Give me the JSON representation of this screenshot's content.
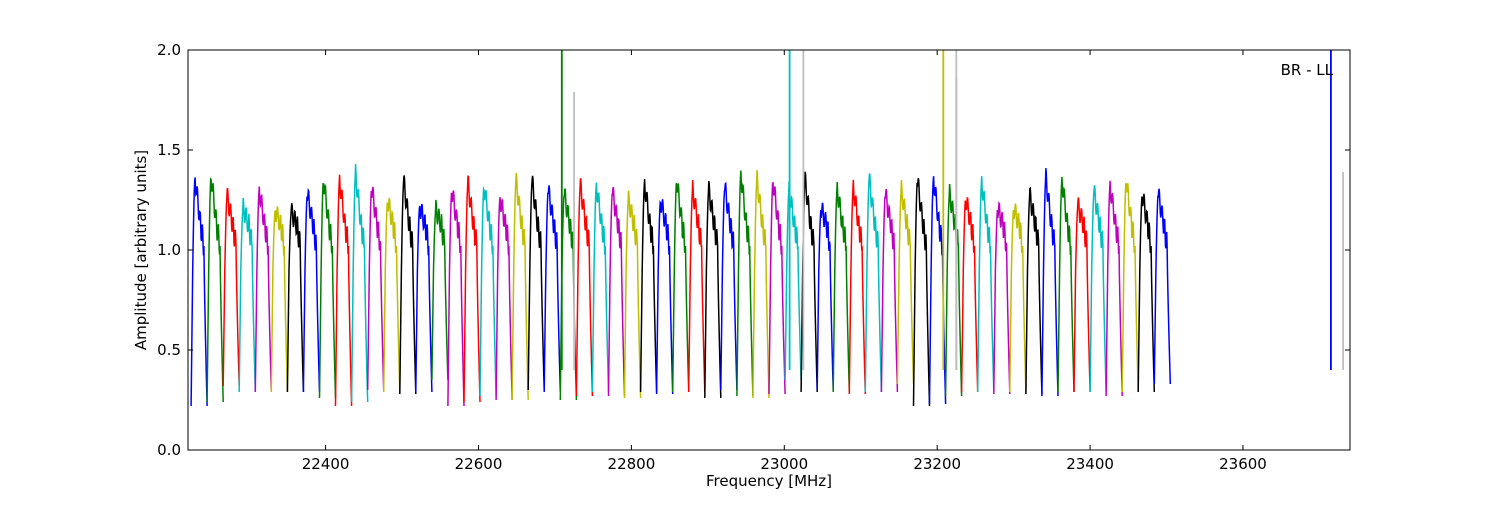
{
  "chart_data": {
    "type": "line",
    "title": "",
    "xlabel": "Frequency [MHz]",
    "ylabel": "Amplitude [arbitrary units]",
    "xlim": [
      22220,
      23740
    ],
    "ylim": [
      0.0,
      2.0
    ],
    "xticks": [
      22400,
      22600,
      22800,
      23000,
      23200,
      23400,
      23600
    ],
    "xtick_labels": [
      "22400",
      "22600",
      "22800",
      "23000",
      "23200",
      "23400",
      "23600"
    ],
    "yticks": [
      0.0,
      0.5,
      1.0,
      1.5,
      2.0
    ],
    "ytick_labels": [
      "0.0",
      "0.5",
      "1.0",
      "1.5",
      "2.0"
    ],
    "grid": false,
    "annotation": "BR - LL",
    "series_colors": [
      "#0000ff",
      "#008000",
      "#ff0000",
      "#00bfbf",
      "#bf00bf",
      "#bfbf00",
      "#000000"
    ],
    "segment_width_mhz": 21.2,
    "segments": [
      {
        "x0": 22224,
        "x1": 22245,
        "color": "#0000ff",
        "peak": 1.36,
        "low": 0.22
      },
      {
        "x0": 22245,
        "x1": 22266,
        "color": "#008000",
        "peak": 1.37,
        "low": 0.24
      },
      {
        "x0": 22266,
        "x1": 22287,
        "color": "#ff0000",
        "peak": 1.27,
        "low": 0.32
      },
      {
        "x0": 22287,
        "x1": 22308,
        "color": "#00bfbf",
        "peak": 1.21,
        "low": 0.29
      },
      {
        "x0": 22308,
        "x1": 22329,
        "color": "#bf00bf",
        "peak": 1.3,
        "low": 0.29
      },
      {
        "x0": 22329,
        "x1": 22350,
        "color": "#bfbf00",
        "peak": 1.2,
        "low": 0.29
      },
      {
        "x0": 22350,
        "x1": 22371,
        "color": "#000000",
        "peak": 1.19,
        "low": 0.29
      },
      {
        "x0": 22371,
        "x1": 22392,
        "color": "#0000ff",
        "peak": 1.28,
        "low": 0.29
      },
      {
        "x0": 22392,
        "x1": 22413,
        "color": "#008000",
        "peak": 1.35,
        "low": 0.26
      },
      {
        "x0": 22413,
        "x1": 22434,
        "color": "#ff0000",
        "peak": 1.35,
        "low": 0.22
      },
      {
        "x0": 22434,
        "x1": 22455,
        "color": "#00bfbf",
        "peak": 1.38,
        "low": 0.24
      },
      {
        "x0": 22455,
        "x1": 22476,
        "color": "#bf00bf",
        "peak": 1.31,
        "low": 0.3
      },
      {
        "x0": 22476,
        "x1": 22497,
        "color": "#bfbf00",
        "peak": 1.25,
        "low": 0.29
      },
      {
        "x0": 22497,
        "x1": 22518,
        "color": "#000000",
        "peak": 1.34,
        "low": 0.28
      },
      {
        "x0": 22518,
        "x1": 22539,
        "color": "#0000ff",
        "peak": 1.22,
        "low": 0.29
      },
      {
        "x0": 22539,
        "x1": 22560,
        "color": "#008000",
        "peak": 1.2,
        "low": 0.35
      },
      {
        "x0": 22560,
        "x1": 22581,
        "color": "#bf00bf",
        "peak": 1.3,
        "low": 0.22
      },
      {
        "x0": 22581,
        "x1": 22602,
        "color": "#ff0000",
        "peak": 1.33,
        "low": 0.24
      },
      {
        "x0": 22602,
        "x1": 22623,
        "color": "#00bfbf",
        "peak": 1.32,
        "low": 0.27
      },
      {
        "x0": 22623,
        "x1": 22644,
        "color": "#bf00bf",
        "peak": 1.26,
        "low": 0.25
      },
      {
        "x0": 22644,
        "x1": 22665,
        "color": "#bfbf00",
        "peak": 1.34,
        "low": 0.25
      },
      {
        "x0": 22665,
        "x1": 22686,
        "color": "#000000",
        "peak": 1.34,
        "low": 0.3
      },
      {
        "x0": 22686,
        "x1": 22707,
        "color": "#0000ff",
        "peak": 1.3,
        "low": 0.29
      },
      {
        "x0": 22707,
        "x1": 22728,
        "color": "#008000",
        "peak": 1.28,
        "low": 0.25
      },
      {
        "x0": 22728,
        "x1": 22749,
        "color": "#ff0000",
        "peak": 1.32,
        "low": 0.27
      },
      {
        "x0": 22749,
        "x1": 22770,
        "color": "#00bfbf",
        "peak": 1.32,
        "low": 0.29
      },
      {
        "x0": 22770,
        "x1": 22791,
        "color": "#bf00bf",
        "peak": 1.29,
        "low": 0.27
      },
      {
        "x0": 22791,
        "x1": 22812,
        "color": "#bfbf00",
        "peak": 1.25,
        "low": 0.26
      },
      {
        "x0": 22812,
        "x1": 22833,
        "color": "#000000",
        "peak": 1.33,
        "low": 0.29
      },
      {
        "x0": 22833,
        "x1": 22854,
        "color": "#0000ff",
        "peak": 1.25,
        "low": 0.28
      },
      {
        "x0": 22854,
        "x1": 22875,
        "color": "#008000",
        "peak": 1.35,
        "low": 0.29
      },
      {
        "x0": 22875,
        "x1": 22896,
        "color": "#ff0000",
        "peak": 1.3,
        "low": 0.29
      },
      {
        "x0": 22896,
        "x1": 22917,
        "color": "#000000",
        "peak": 1.3,
        "low": 0.26
      },
      {
        "x0": 22917,
        "x1": 22938,
        "color": "#0000ff",
        "peak": 1.31,
        "low": 0.3
      },
      {
        "x0": 22938,
        "x1": 22959,
        "color": "#008000",
        "peak": 1.38,
        "low": 0.27
      },
      {
        "x0": 22959,
        "x1": 22980,
        "color": "#bfbf00",
        "peak": 1.35,
        "low": 0.26
      },
      {
        "x0": 22980,
        "x1": 23001,
        "color": "#bf00bf",
        "peak": 1.35,
        "low": 0.28
      },
      {
        "x0": 23001,
        "x1": 23022,
        "color": "#00bfbf",
        "peak": 1.3,
        "low": 0.35
      },
      {
        "x0": 23022,
        "x1": 23043,
        "color": "#000000",
        "peak": 1.35,
        "low": 0.29
      },
      {
        "x0": 23043,
        "x1": 23064,
        "color": "#0000ff",
        "peak": 1.21,
        "low": 0.3
      },
      {
        "x0": 23064,
        "x1": 23085,
        "color": "#008000",
        "peak": 1.3,
        "low": 0.29
      },
      {
        "x0": 23085,
        "x1": 23106,
        "color": "#ff0000",
        "peak": 1.31,
        "low": 0.28
      },
      {
        "x0": 23106,
        "x1": 23127,
        "color": "#00bfbf",
        "peak": 1.35,
        "low": 0.29
      },
      {
        "x0": 23127,
        "x1": 23148,
        "color": "#bf00bf",
        "peak": 1.28,
        "low": 0.29
      },
      {
        "x0": 23148,
        "x1": 23169,
        "color": "#bfbf00",
        "peak": 1.3,
        "low": 0.33
      },
      {
        "x0": 23169,
        "x1": 23190,
        "color": "#000000",
        "peak": 1.35,
        "low": 0.22
      },
      {
        "x0": 23190,
        "x1": 23211,
        "color": "#0000ff",
        "peak": 1.36,
        "low": 0.23
      },
      {
        "x0": 23211,
        "x1": 23232,
        "color": "#008000",
        "peak": 1.28,
        "low": 0.27
      },
      {
        "x0": 23232,
        "x1": 23253,
        "color": "#ff0000",
        "peak": 1.26,
        "low": 0.29
      },
      {
        "x0": 23253,
        "x1": 23274,
        "color": "#00bfbf",
        "peak": 1.34,
        "low": 0.29
      },
      {
        "x0": 23274,
        "x1": 23295,
        "color": "#bf00bf",
        "peak": 1.21,
        "low": 0.28
      },
      {
        "x0": 23295,
        "x1": 23316,
        "color": "#bfbf00",
        "peak": 1.21,
        "low": 0.29
      },
      {
        "x0": 23316,
        "x1": 23337,
        "color": "#000000",
        "peak": 1.27,
        "low": 0.28
      },
      {
        "x0": 23337,
        "x1": 23358,
        "color": "#0000ff",
        "peak": 1.36,
        "low": 0.27
      },
      {
        "x0": 23358,
        "x1": 23379,
        "color": "#008000",
        "peak": 1.35,
        "low": 0.29
      },
      {
        "x0": 23379,
        "x1": 23400,
        "color": "#ff0000",
        "peak": 1.22,
        "low": 0.29
      },
      {
        "x0": 23400,
        "x1": 23421,
        "color": "#00bfbf",
        "peak": 1.29,
        "low": 0.29
      },
      {
        "x0": 23421,
        "x1": 23442,
        "color": "#bf00bf",
        "peak": 1.32,
        "low": 0.27
      },
      {
        "x0": 23442,
        "x1": 23463,
        "color": "#bfbf00",
        "peak": 1.35,
        "low": 0.29
      },
      {
        "x0": 23463,
        "x1": 23484,
        "color": "#000000",
        "peak": 1.28,
        "low": 0.29
      },
      {
        "x0": 23484,
        "x1": 23505,
        "color": "#0000ff",
        "peak": 1.28,
        "low": 0.33
      }
    ],
    "spikes": [
      {
        "x": 22709,
        "top": 2.0,
        "color": "#008000"
      },
      {
        "x": 22725,
        "top": 1.79,
        "color": "#bfbfbf"
      },
      {
        "x": 23007,
        "top": 2.0,
        "color": "#00bfbf"
      },
      {
        "x": 23025,
        "top": 2.0,
        "color": "#bfbfbf"
      },
      {
        "x": 23208,
        "top": 2.0,
        "color": "#bfbf00"
      },
      {
        "x": 23225,
        "top": 1.86,
        "color": "#bfbf00"
      },
      {
        "x": 23225,
        "top": 2.0,
        "color": "#bfbfbf"
      },
      {
        "x": 23715,
        "top": 2.0,
        "color": "#0000ff"
      },
      {
        "x": 23731,
        "top": 1.39,
        "color": "#bfbfbf"
      }
    ]
  }
}
